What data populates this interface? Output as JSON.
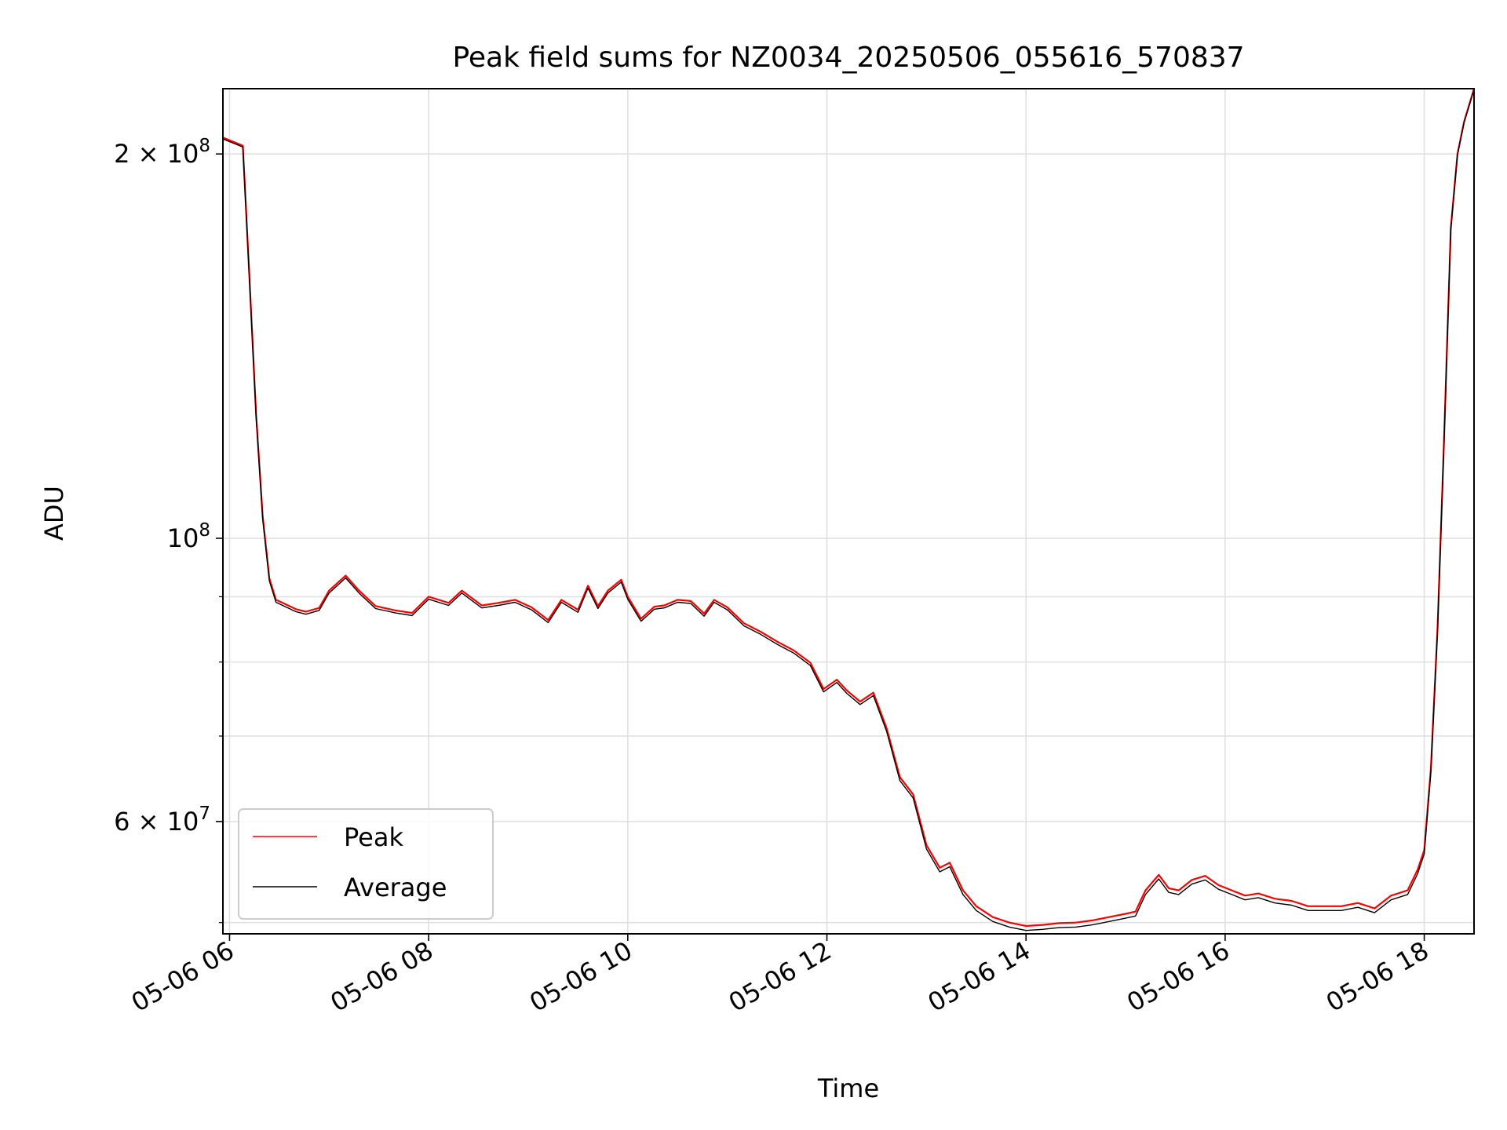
{
  "chart_data": {
    "type": "line",
    "title": "Peak field sums for NZ0034_20250506_055616_570837",
    "xlabel": "Time",
    "ylabel": "ADU",
    "y_scale": "log",
    "grid": true,
    "legend_position": "lower-left",
    "x_date": "05-06",
    "xlim": [
      "05-06 05:56",
      "05-06 18:30"
    ],
    "ylim": [
      49000000,
      225000000
    ],
    "x_ticks": [
      "05-06 06",
      "05-06 08",
      "05-06 10",
      "05-06 12",
      "05-06 14",
      "05-06 16",
      "05-06 18"
    ],
    "x_tick_values": [
      "06:00",
      "08:00",
      "10:00",
      "12:00",
      "14:00",
      "16:00",
      "18:00"
    ],
    "y_major_ticks": [
      {
        "value": 60000000,
        "mantissa": "6",
        "exponent": "7"
      },
      {
        "value": 100000000,
        "mantissa": "",
        "exponent": "8"
      },
      {
        "value": 200000000,
        "mantissa": "2",
        "exponent": "8"
      }
    ],
    "y_minor_ticks": [
      50000000,
      70000000,
      80000000,
      90000000
    ],
    "series": [
      {
        "name": "Peak",
        "color": "#ff0000",
        "x": [
          "05:56",
          "06:00",
          "06:08",
          "06:12",
          "06:16",
          "06:20",
          "06:24",
          "06:28",
          "06:32",
          "06:36",
          "06:40",
          "06:46",
          "06:54",
          "07:00",
          "07:10",
          "07:18",
          "07:28",
          "07:40",
          "07:50",
          "08:00",
          "08:12",
          "08:20",
          "08:32",
          "08:42",
          "08:52",
          "09:02",
          "09:12",
          "09:20",
          "09:30",
          "09:36",
          "09:42",
          "09:48",
          "09:56",
          "10:00",
          "10:08",
          "10:16",
          "10:22",
          "10:30",
          "10:38",
          "10:46",
          "10:52",
          "11:00",
          "11:10",
          "11:20",
          "11:30",
          "11:40",
          "11:50",
          "11:58",
          "12:06",
          "12:12",
          "12:20",
          "12:28",
          "12:36",
          "12:44",
          "12:52",
          "13:00",
          "13:08",
          "13:14",
          "13:22",
          "13:30",
          "13:40",
          "13:50",
          "14:00",
          "14:10",
          "14:20",
          "14:30",
          "14:40",
          "14:50",
          "15:00",
          "15:06",
          "15:12",
          "15:20",
          "15:26",
          "15:32",
          "15:40",
          "15:48",
          "15:56",
          "16:04",
          "16:12",
          "16:20",
          "16:30",
          "16:40",
          "16:50",
          "17:00",
          "17:10",
          "17:20",
          "17:30",
          "17:40",
          "17:50",
          "17:56",
          "18:00",
          "18:04",
          "18:08",
          "18:12",
          "18:16",
          "18:20",
          "18:24",
          "18:30"
        ],
        "y": [
          206000000,
          205000000,
          203000000,
          160000000,
          125000000,
          104000000,
          93000000,
          89500000,
          89000000,
          88500000,
          88000000,
          87600000,
          88200000,
          91000000,
          93500000,
          91000000,
          88500000,
          87800000,
          87400000,
          90000000,
          89000000,
          91000000,
          88600000,
          89000000,
          89500000,
          88300000,
          86300000,
          89500000,
          87900000,
          91800000,
          88500000,
          91000000,
          92800000,
          90000000,
          86500000,
          88400000,
          88600000,
          89500000,
          89300000,
          87300000,
          89500000,
          88300000,
          85800000,
          84500000,
          83000000,
          81700000,
          79900000,
          76200000,
          77500000,
          76000000,
          74500000,
          75700000,
          71000000,
          65000000,
          63000000,
          57500000,
          55200000,
          55700000,
          53000000,
          51500000,
          50500000,
          50000000,
          49700000,
          49800000,
          49950000,
          50000000,
          50200000,
          50500000,
          50800000,
          51000000,
          53000000,
          54500000,
          53200000,
          53000000,
          54000000,
          54400000,
          53500000,
          53000000,
          52500000,
          52700000,
          52200000,
          52000000,
          51500000,
          51500000,
          51500000,
          51800000,
          51300000,
          52500000,
          53000000,
          55000000,
          57000000,
          66000000,
          85000000,
          120000000,
          175000000,
          200000000,
          212000000,
          225000000
        ]
      },
      {
        "name": "Average",
        "color": "#000000",
        "x": [
          "05:56",
          "06:00",
          "06:08",
          "06:12",
          "06:16",
          "06:20",
          "06:24",
          "06:28",
          "06:32",
          "06:36",
          "06:40",
          "06:46",
          "06:54",
          "07:00",
          "07:10",
          "07:18",
          "07:28",
          "07:40",
          "07:50",
          "08:00",
          "08:12",
          "08:20",
          "08:32",
          "08:42",
          "08:52",
          "09:02",
          "09:12",
          "09:20",
          "09:30",
          "09:36",
          "09:42",
          "09:48",
          "09:56",
          "10:00",
          "10:08",
          "10:16",
          "10:22",
          "10:30",
          "10:38",
          "10:46",
          "10:52",
          "11:00",
          "11:10",
          "11:20",
          "11:30",
          "11:40",
          "11:50",
          "11:58",
          "12:06",
          "12:12",
          "12:20",
          "12:28",
          "12:36",
          "12:44",
          "12:52",
          "13:00",
          "13:08",
          "13:14",
          "13:22",
          "13:30",
          "13:40",
          "13:50",
          "14:00",
          "14:10",
          "14:20",
          "14:30",
          "14:40",
          "14:50",
          "15:00",
          "15:06",
          "15:12",
          "15:20",
          "15:26",
          "15:32",
          "15:40",
          "15:48",
          "15:56",
          "16:04",
          "16:12",
          "16:20",
          "16:30",
          "16:40",
          "16:50",
          "17:00",
          "17:10",
          "17:20",
          "17:30",
          "17:40",
          "17:50",
          "17:56",
          "18:00",
          "18:04",
          "18:08",
          "18:12",
          "18:16",
          "18:20",
          "18:24",
          "18:30"
        ],
        "y": [
          205500000,
          204500000,
          202500000,
          159500000,
          124500000,
          103500000,
          92600000,
          89100000,
          88600000,
          88100000,
          87600000,
          87200000,
          87800000,
          90600000,
          93100000,
          90600000,
          88100000,
          87400000,
          87000000,
          89600000,
          88600000,
          90600000,
          88200000,
          88600000,
          89100000,
          87900000,
          85900000,
          89100000,
          87500000,
          91400000,
          88100000,
          90600000,
          92400000,
          89600000,
          86100000,
          88000000,
          88200000,
          89100000,
          88900000,
          86900000,
          89100000,
          87900000,
          85400000,
          84100000,
          82600000,
          81300000,
          79500000,
          75800000,
          77100000,
          75600000,
          74100000,
          75300000,
          70600000,
          64600000,
          62600000,
          57100000,
          54800000,
          55300000,
          52600000,
          51100000,
          50100000,
          49600000,
          49300000,
          49400000,
          49550000,
          49600000,
          49800000,
          50100000,
          50400000,
          50600000,
          52600000,
          54100000,
          52800000,
          52600000,
          53600000,
          54000000,
          53100000,
          52600000,
          52100000,
          52300000,
          51800000,
          51600000,
          51100000,
          51100000,
          51100000,
          51400000,
          50900000,
          52100000,
          52600000,
          54600000,
          56600000,
          65600000,
          84600000,
          119600000,
          174600000,
          199600000,
          211600000,
          224600000
        ]
      }
    ],
    "legend": [
      {
        "label": "Peak",
        "color": "#ff0000"
      },
      {
        "label": "Average",
        "color": "#000000"
      }
    ]
  }
}
